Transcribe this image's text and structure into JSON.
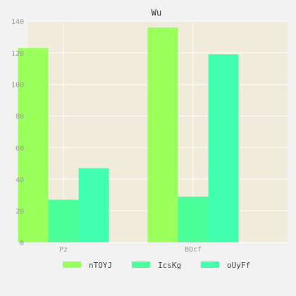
{
  "chart_data": {
    "type": "bar",
    "title": "Wu",
    "xlabel": "",
    "ylabel": "",
    "categories": [
      "Pz",
      "BOcf"
    ],
    "series": [
      {
        "name": "nTOYJ",
        "values": [
          123,
          136
        ]
      },
      {
        "name": "IcsKg",
        "values": [
          27,
          29
        ]
      },
      {
        "name": "oUyFf",
        "values": [
          47,
          119
        ]
      }
    ],
    "ylim": [
      0,
      140
    ],
    "yticks": [
      0,
      20,
      40,
      60,
      80,
      100,
      120,
      140
    ],
    "grid": true,
    "legend_position": "bottom",
    "colors": {
      "series": [
        "#99ff5a",
        "#4dff9a",
        "#40ffae"
      ],
      "plot_background": "#f1ebda",
      "page_background": "#f2f2f2",
      "grid": "#ffffff"
    }
  }
}
